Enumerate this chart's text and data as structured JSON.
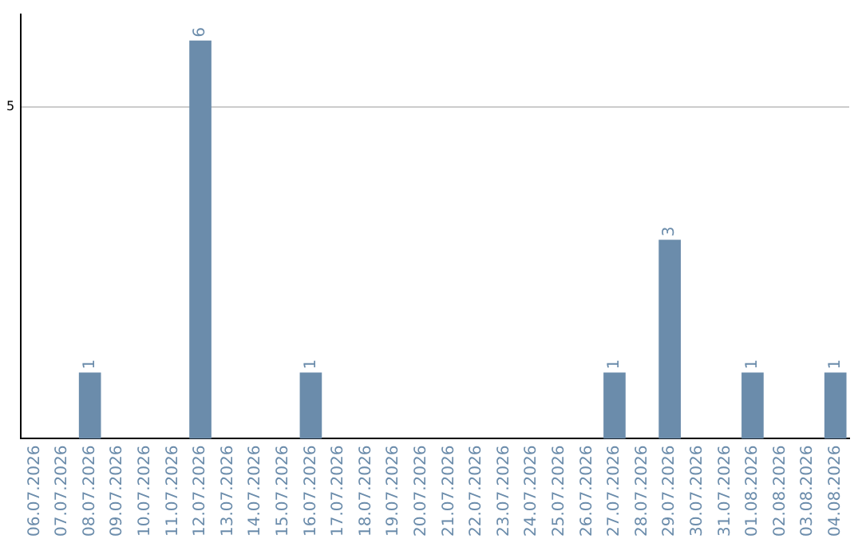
{
  "chart_data": {
    "type": "bar",
    "categories": [
      "06.07.2026",
      "07.07.2026",
      "08.07.2026",
      "09.07.2026",
      "10.07.2026",
      "11.07.2026",
      "12.07.2026",
      "13.07.2026",
      "14.07.2026",
      "15.07.2026",
      "16.07.2026",
      "17.07.2026",
      "18.07.2026",
      "19.07.2026",
      "20.07.2026",
      "21.07.2026",
      "22.07.2026",
      "23.07.2026",
      "24.07.2026",
      "25.07.2026",
      "26.07.2026",
      "27.07.2026",
      "28.07.2026",
      "29.07.2026",
      "30.07.2026",
      "31.07.2026",
      "01.08.2026",
      "02.08.2026",
      "03.08.2026",
      "04.08.2026"
    ],
    "values": [
      0,
      0,
      1,
      0,
      0,
      0,
      6,
      0,
      0,
      0,
      1,
      0,
      0,
      0,
      0,
      0,
      0,
      0,
      0,
      0,
      0,
      1,
      0,
      3,
      0,
      0,
      1,
      0,
      0,
      1
    ],
    "value_labels": [
      null,
      null,
      "1",
      null,
      null,
      null,
      "6",
      null,
      null,
      null,
      "1",
      null,
      null,
      null,
      null,
      null,
      null,
      null,
      null,
      null,
      null,
      "1",
      null,
      "3",
      null,
      null,
      "1",
      null,
      null,
      "1"
    ],
    "color": "#6b8cab",
    "ylim": [
      0,
      6.4
    ],
    "yticks": [
      5
    ],
    "grid": "y",
    "legend": false
  }
}
